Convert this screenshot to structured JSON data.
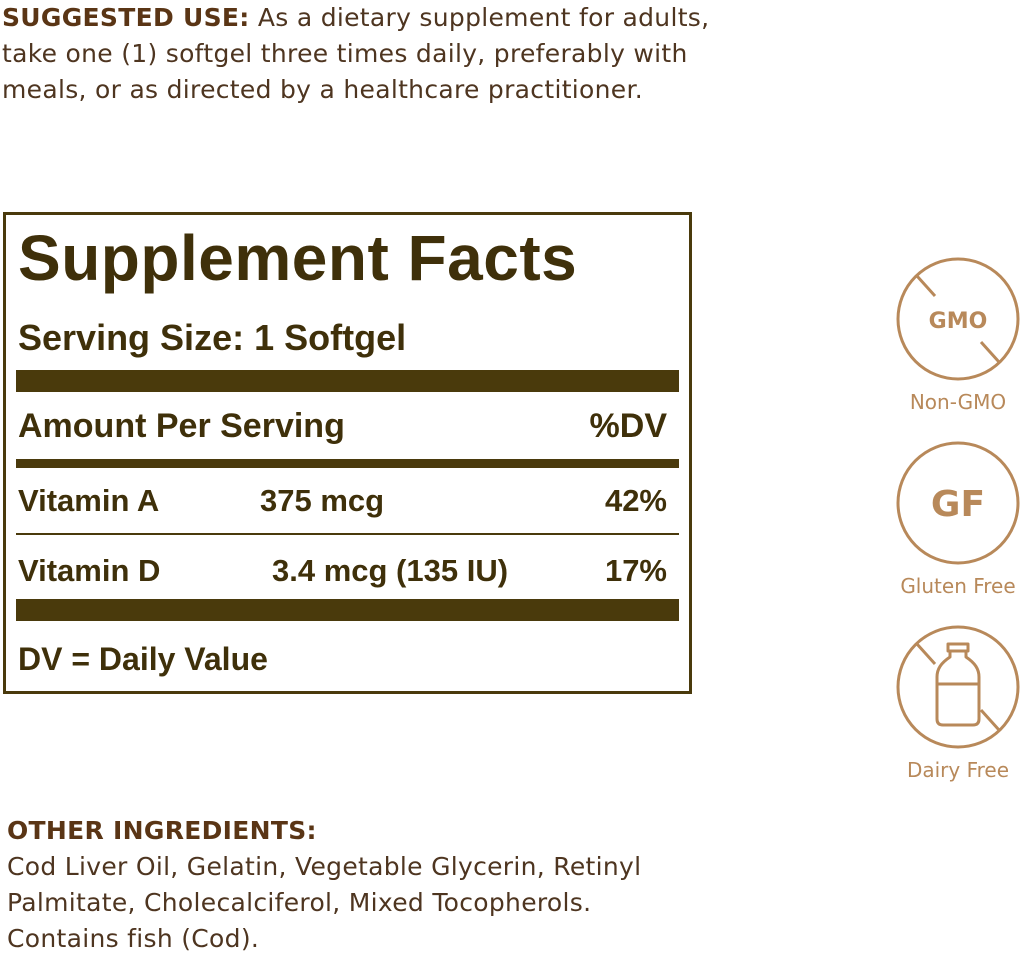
{
  "suggested_use": {
    "heading": "SUGGESTED USE:",
    "lines": [
      " As a dietary supplement for adults,",
      "take one (1) softgel three times daily, preferably with",
      "meals, or as directed by a healthcare practitioner."
    ]
  },
  "facts": {
    "title": "Supplement Facts",
    "serving_size": "Serving Size: 1 Softgel",
    "amount_header": "Amount Per Serving",
    "dv_header": "%DV",
    "rows": [
      {
        "name": "Vitamin A",
        "amount": "375 mcg",
        "dv": "42%"
      },
      {
        "name": "Vitamin D",
        "amount": "3.4 mcg (135 IU)",
        "dv": "17%"
      }
    ],
    "footnote": "DV = Daily Value"
  },
  "badges": [
    {
      "icon": "gmo-crossed-icon",
      "glyph": "GMO",
      "label": "Non-GMO"
    },
    {
      "icon": "gluten-free-icon",
      "glyph": "GF",
      "label": "Gluten Free"
    },
    {
      "icon": "milk-bottle-crossed-icon",
      "label": "Dairy Free"
    }
  ],
  "other_ingredients": {
    "heading": "OTHER INGREDIENTS:",
    "lines": [
      "Cod Liver Oil, Gelatin, Vegetable Glycerin, Retinyl",
      "Palmitate, Cholecalciferol, Mixed Tocopherols.",
      "Contains fish (Cod)."
    ]
  },
  "colors": {
    "text": "#4e3520",
    "panel": "#4a3a0c",
    "badge": "#b8895a"
  }
}
